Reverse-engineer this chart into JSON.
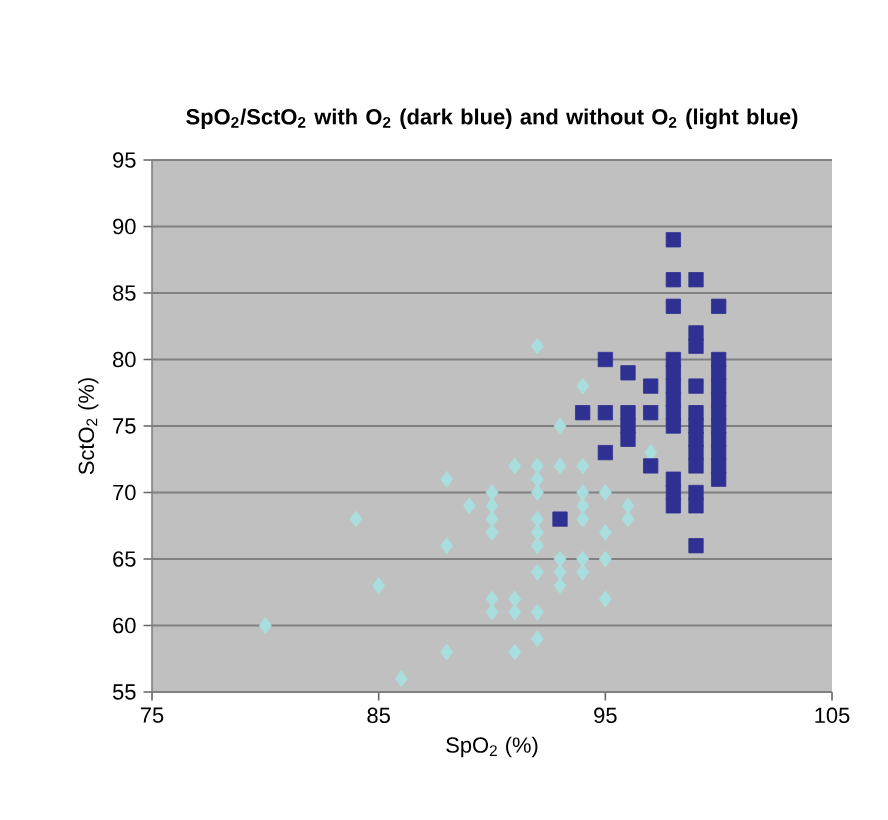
{
  "chart_data": {
    "type": "scatter",
    "title": "SpO$_{2}$/SctO$_{2}$ with O$_{2}$ (dark blue) and without O$_{2}$ (light blue)",
    "xlabel": "SpO$_{2}$ (%)",
    "ylabel": "SctO$_{2}$ (%)",
    "xlim": [
      75,
      105
    ],
    "xticks": [
      75,
      85,
      95,
      105
    ],
    "ylim": [
      55,
      95
    ],
    "yticks": [
      55,
      60,
      65,
      70,
      75,
      80,
      85,
      90,
      95
    ],
    "grid": "y",
    "series": [
      {
        "color": "#a8dede",
        "marker": "diamond",
        "x": [
          80,
          84,
          85,
          86,
          88,
          88,
          88,
          89,
          90,
          90,
          90,
          90,
          90,
          90,
          91,
          91,
          91,
          91,
          92,
          92,
          92,
          92,
          92,
          92,
          92,
          92,
          92,
          92,
          93,
          93,
          93,
          93,
          93,
          94,
          94,
          94,
          94,
          94,
          94,
          94,
          95,
          95,
          95,
          95,
          96,
          96,
          97
        ],
        "values": [
          60,
          68,
          63,
          56,
          71,
          66,
          58,
          69,
          70,
          69,
          68,
          67,
          62,
          61,
          72,
          62,
          61,
          58,
          81,
          72,
          71,
          70,
          68,
          67,
          66,
          64,
          61,
          59,
          75,
          72,
          65,
          64,
          63,
          78,
          72,
          70,
          69,
          68,
          65,
          64,
          70,
          67,
          65,
          62,
          69,
          68,
          73
        ]
      },
      {
        "color": "#2e3192",
        "marker": "square",
        "x": [
          93,
          94,
          95,
          95,
          95,
          96,
          96,
          96,
          96,
          97,
          97,
          97,
          98,
          98,
          98,
          98,
          98,
          98,
          98,
          98,
          98,
          98,
          98,
          98,
          99,
          99,
          99,
          99,
          99,
          99,
          99,
          99,
          99,
          99,
          99,
          99,
          100,
          100,
          100,
          100,
          100,
          100,
          100,
          100,
          100,
          100,
          100
        ],
        "values": [
          68,
          76,
          80,
          76,
          73,
          79,
          76,
          75,
          74,
          78,
          76,
          72,
          89,
          86,
          84,
          80,
          79,
          78,
          77,
          76,
          75,
          71,
          70,
          69,
          86,
          82,
          81,
          78,
          76,
          75,
          74,
          73,
          72,
          70,
          69,
          66,
          84,
          80,
          79,
          78,
          77,
          76,
          75,
          74,
          73,
          72,
          71
        ]
      }
    ]
  }
}
